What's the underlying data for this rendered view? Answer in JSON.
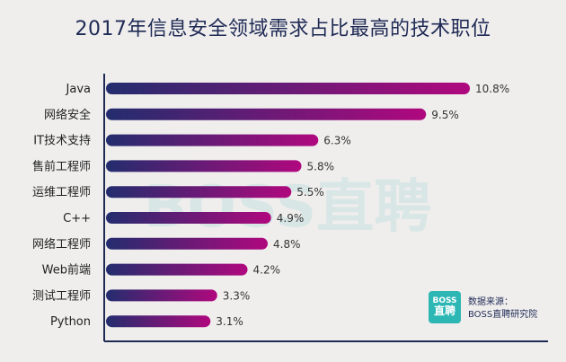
{
  "chart_data": {
    "type": "bar",
    "orientation": "horizontal",
    "title": "2017年信息安全领域需求占比最高的技术职位",
    "categories": [
      "Java",
      "网络安全",
      "IT技术支持",
      "售前工程师",
      "运维工程师",
      "C++",
      "网络工程师",
      "Web前端",
      "测试工程师",
      "Python"
    ],
    "values": [
      10.8,
      9.5,
      6.3,
      5.8,
      5.5,
      4.9,
      4.8,
      4.2,
      3.3,
      3.1
    ],
    "value_labels": [
      "10.8%",
      "9.5%",
      "6.3%",
      "5.8%",
      "5.5%",
      "4.9%",
      "4.8%",
      "4.2%",
      "3.3%",
      "3.1%"
    ],
    "unit": "%",
    "xlabel": "",
    "ylabel": "",
    "xlim": [
      0,
      10.8
    ],
    "grid": false,
    "colors": {
      "bar_start": "#232d6e",
      "bar_end": "#b0087e",
      "axis": "#1f2a55"
    }
  },
  "watermark": "BOSS直聘",
  "logo": {
    "line1": "BOSS",
    "line2": "直聘"
  },
  "source": {
    "label": "数据来源：",
    "name": "BOSS直聘研究院"
  }
}
